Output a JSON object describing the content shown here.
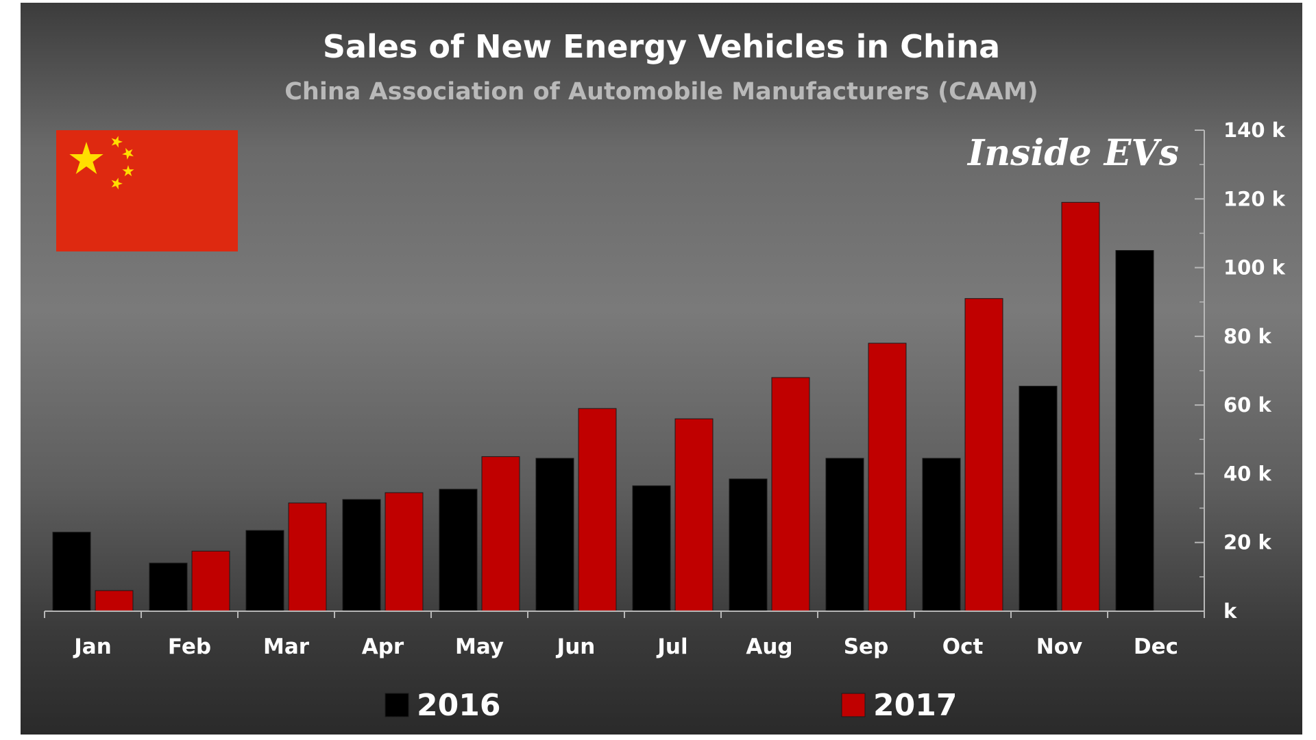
{
  "chart_data": {
    "type": "bar",
    "title": "Sales of New Energy Vehicles in China",
    "subtitle": "China Association of Automobile Manufacturers (CAAM)",
    "categories": [
      "Jan",
      "Feb",
      "Mar",
      "Apr",
      "May",
      "Jun",
      "Jul",
      "Aug",
      "Sep",
      "Oct",
      "Nov",
      "Dec"
    ],
    "series": [
      {
        "name": "2016",
        "color": "#000000",
        "values": [
          23000,
          14000,
          23500,
          32500,
          35500,
          44500,
          36500,
          38500,
          44500,
          44500,
          65500,
          105000
        ]
      },
      {
        "name": "2017",
        "color": "#c00000",
        "values": [
          6000,
          17500,
          31500,
          34500,
          45000,
          59000,
          56000,
          68000,
          78000,
          91000,
          119000,
          null
        ]
      }
    ],
    "y_axis": {
      "position": "right",
      "ylim": [
        0,
        140000
      ],
      "ticks": [
        0,
        20000,
        40000,
        60000,
        80000,
        100000,
        120000,
        140000
      ],
      "tick_labels": [
        "k",
        "20 k",
        "40 k",
        "60 k",
        "80 k",
        "100 k",
        "120 k",
        "140 k"
      ]
    },
    "xlabel": "",
    "ylabel": "",
    "grid": false,
    "legend_position": "bottom"
  },
  "watermark": {
    "text": "Inside EVs"
  },
  "flag": {
    "icon": "china-flag-icon",
    "field_color": "#de2910",
    "star_color": "#ffde00"
  }
}
